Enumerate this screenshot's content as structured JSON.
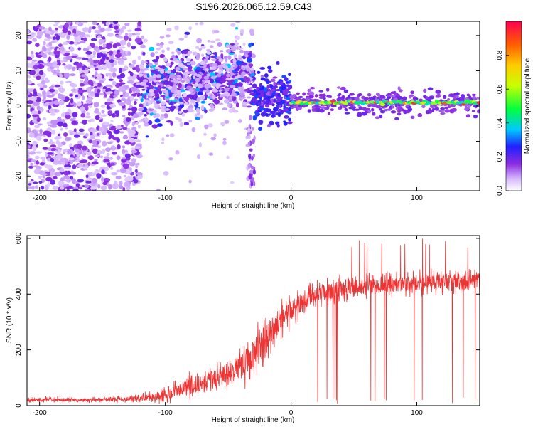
{
  "figure": {
    "title": "S196.2026.065.12.59.C43"
  },
  "chart_data": [
    {
      "type": "heatmap",
      "xlabel": "Height of straight line (km)",
      "ylabel": "Frequency (Hz)",
      "xlim": [
        -210,
        150
      ],
      "ylim": [
        -24,
        24
      ],
      "xticks": [
        -200,
        -100,
        0,
        100
      ],
      "yticks": [
        -20,
        -10,
        0,
        10,
        20
      ],
      "colorbar": {
        "label": "Normalized spectral amplitude",
        "range": [
          0,
          1
        ],
        "ticks": [
          0.0,
          0.2,
          0.4,
          0.6,
          0.8
        ],
        "tick_labels": [
          "0.0",
          "0.2",
          "0.4",
          "0.6",
          "0.8"
        ]
      },
      "features": {
        "noise_region_x": [
          -210,
          -120
        ],
        "scatter_band_x": [
          -120,
          -30
        ],
        "transition_x": [
          -30,
          0
        ],
        "tonal_line": {
          "x": [
            0,
            150
          ],
          "frequency_hz": 1
        }
      }
    },
    {
      "type": "line",
      "xlabel": "Height of straight line (km)",
      "ylabel": "SNR (10 * v/v)",
      "xlim": [
        -210,
        150
      ],
      "ylim": [
        0,
        610
      ],
      "xticks": [
        -200,
        -100,
        0,
        100
      ],
      "yticks": [
        0,
        200,
        400,
        600
      ],
      "series": [
        {
          "name": "SNR",
          "color": "#ee3333",
          "x": [
            -210,
            -190,
            -170,
            -150,
            -130,
            -110,
            -100,
            -90,
            -80,
            -70,
            -60,
            -50,
            -40,
            -30,
            -25,
            -20,
            -15,
            -10,
            -5,
            0,
            5,
            10,
            15,
            20,
            25,
            30,
            40,
            50,
            60,
            70,
            80,
            90,
            100,
            110,
            120,
            130,
            140,
            150
          ],
          "values": [
            20,
            22,
            20,
            22,
            24,
            30,
            40,
            55,
            70,
            85,
            95,
            115,
            140,
            180,
            210,
            240,
            270,
            300,
            330,
            340,
            360,
            375,
            390,
            400,
            405,
            410,
            420,
            425,
            428,
            430,
            432,
            435,
            440,
            442,
            445,
            448,
            440,
            450
          ],
          "spread": [
            12,
            12,
            12,
            12,
            14,
            25,
            35,
            45,
            55,
            60,
            65,
            75,
            90,
            110,
            110,
            100,
            95,
            90,
            80,
            70,
            65,
            60,
            55,
            55,
            55,
            55,
            55,
            50,
            50,
            50,
            50,
            50,
            50,
            50,
            50,
            50,
            50,
            50
          ]
        }
      ]
    }
  ]
}
